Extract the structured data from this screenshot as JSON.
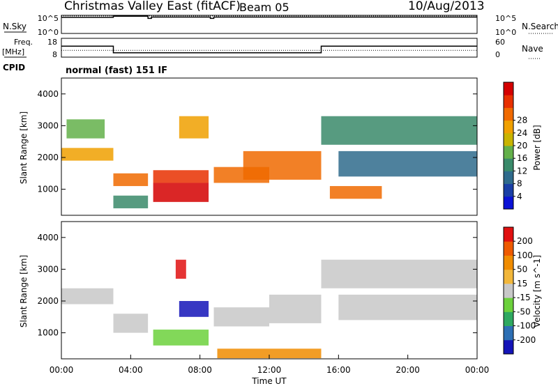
{
  "header": {
    "title": "Christmas Valley East (fitACF)",
    "beam": "Beam 05",
    "date": "10/Aug/2013"
  },
  "side_labels": {
    "nsky": "N.Sky",
    "nsearch": "N.Search",
    "freq_line1": "Freq.",
    "freq_line2": "[MHz]",
    "nave": "Nave",
    "cpid": "CPID",
    "cpid_value": "normal (fast) 151 IF"
  },
  "chart_data": [
    {
      "type": "line",
      "panel": "noise",
      "ytick_labels": [
        "10^5",
        "10^0"
      ],
      "ytick_labels_right": [
        "10^5",
        "10^0"
      ],
      "series": [
        {
          "name": "N.Sky",
          "style": "solid",
          "segments": [
            [
              0,
              4.6
            ],
            [
              3.0,
              4.6
            ],
            [
              3.0,
              4.95
            ],
            [
              5.0,
              4.95
            ],
            [
              5.0,
              4.3
            ],
            [
              5.2,
              4.3
            ],
            [
              5.2,
              4.7
            ],
            [
              8.6,
              4.7
            ],
            [
              8.6,
              4.3
            ],
            [
              8.8,
              4.3
            ],
            [
              8.8,
              4.7
            ],
            [
              24,
              4.7
            ]
          ]
        },
        {
          "name": "N.Search",
          "style": "dotted",
          "segments": [
            [
              0,
              5.0
            ],
            [
              24,
              5.0
            ]
          ]
        }
      ],
      "ylim": [
        0,
        5
      ]
    },
    {
      "type": "line",
      "panel": "frequency",
      "ytick_labels": [
        "18",
        "8"
      ],
      "ytick_labels_right": [
        "60",
        "0"
      ],
      "series": [
        {
          "name": "Freq.",
          "style": "solid",
          "points": [
            [
              0,
              13.9
            ],
            [
              3.0,
              13.9
            ],
            [
              3.0,
              10.1
            ],
            [
              15.0,
              10.1
            ],
            [
              15.0,
              13.9
            ],
            [
              24,
              13.9
            ]
          ]
        },
        {
          "name": "Nave",
          "style": "dotted",
          "points": [
            [
              0,
              11.5
            ],
            [
              24,
              11.5
            ]
          ]
        }
      ],
      "ylim": [
        8,
        18
      ]
    },
    {
      "type": "heatmap",
      "panel": "power",
      "ylabel": "Slant Range [km]",
      "yticks": [
        1000,
        2000,
        3000,
        4000
      ],
      "ylim": [
        180,
        4500
      ],
      "xlim": [
        0,
        24
      ],
      "colorbar": {
        "label": "Power [dB]",
        "ticks": [
          "4",
          "8",
          "12",
          "16",
          "20",
          "24",
          "28"
        ],
        "colors": [
          "#0b12d6",
          "#1a3fa6",
          "#2f6b8c",
          "#3a8a6a",
          "#63b04a",
          "#c9b400",
          "#f0a000",
          "#f06a00",
          "#e83000",
          "#d40000"
        ]
      },
      "regions": [
        {
          "x": [
            0,
            3
          ],
          "y": [
            1900,
            2300
          ],
          "level": 6
        },
        {
          "x": [
            0.3,
            2.5
          ],
          "y": [
            2600,
            3200
          ],
          "level": 4
        },
        {
          "x": [
            3,
            5
          ],
          "y": [
            1100,
            1500
          ],
          "level": 7
        },
        {
          "x": [
            3,
            5
          ],
          "y": [
            400,
            800
          ],
          "level": 3
        },
        {
          "x": [
            5.3,
            8.5
          ],
          "y": [
            600,
            1200
          ],
          "level": 9
        },
        {
          "x": [
            5.3,
            8.5
          ],
          "y": [
            1200,
            1600
          ],
          "level": 8
        },
        {
          "x": [
            6.8,
            8.5
          ],
          "y": [
            2600,
            3300
          ],
          "level": 6
        },
        {
          "x": [
            8.8,
            12
          ],
          "y": [
            1200,
            1700
          ],
          "level": 7
        },
        {
          "x": [
            10.5,
            15
          ],
          "y": [
            1300,
            2200
          ],
          "level": 7
        },
        {
          "x": [
            15,
            24
          ],
          "y": [
            2400,
            3300
          ],
          "level": 3
        },
        {
          "x": [
            16,
            24
          ],
          "y": [
            1400,
            2200
          ],
          "level": 2
        },
        {
          "x": [
            15.5,
            18.5
          ],
          "y": [
            700,
            1100
          ],
          "level": 7
        }
      ]
    },
    {
      "type": "heatmap",
      "panel": "velocity",
      "ylabel": "Slant Range [km]",
      "yticks": [
        1000,
        2000,
        3000,
        4000
      ],
      "ylim": [
        180,
        4500
      ],
      "xlim": [
        0,
        24
      ],
      "xlabel": "Time UT",
      "xtick_labels": [
        "00:00",
        "04:00",
        "08:00",
        "12:00",
        "16:00",
        "20:00",
        "00:00"
      ],
      "colorbar": {
        "label": "Velocity [m s^-1]",
        "ticks": [
          "200",
          "100",
          "50",
          "15",
          "-15",
          "-50",
          "-100",
          "-200"
        ],
        "colors": [
          "#1414b8",
          "#2d6fb4",
          "#2ea860",
          "#6cd13c",
          "#c8c8c8",
          "#f2b73b",
          "#f08c00",
          "#ee5a00",
          "#e01010"
        ]
      },
      "regions": [
        {
          "x": [
            0,
            3
          ],
          "y": [
            1900,
            2400
          ],
          "level": 4
        },
        {
          "x": [
            3,
            5
          ],
          "y": [
            1000,
            1600
          ],
          "level": 4
        },
        {
          "x": [
            5.3,
            8.5
          ],
          "y": [
            600,
            1100
          ],
          "level": 3
        },
        {
          "x": [
            6.8,
            8.5
          ],
          "y": [
            1500,
            2000
          ],
          "level": 0
        },
        {
          "x": [
            6.6,
            7.2
          ],
          "y": [
            2700,
            3300
          ],
          "level": 8
        },
        {
          "x": [
            8.8,
            12
          ],
          "y": [
            1200,
            1800
          ],
          "level": 4
        },
        {
          "x": [
            9,
            15
          ],
          "y": [
            200,
            500
          ],
          "level": 6
        },
        {
          "x": [
            12,
            15
          ],
          "y": [
            1300,
            2200
          ],
          "level": 4
        },
        {
          "x": [
            15,
            24
          ],
          "y": [
            2400,
            3300
          ],
          "level": 4
        },
        {
          "x": [
            16,
            24
          ],
          "y": [
            1400,
            2200
          ],
          "level": 4
        }
      ]
    }
  ]
}
